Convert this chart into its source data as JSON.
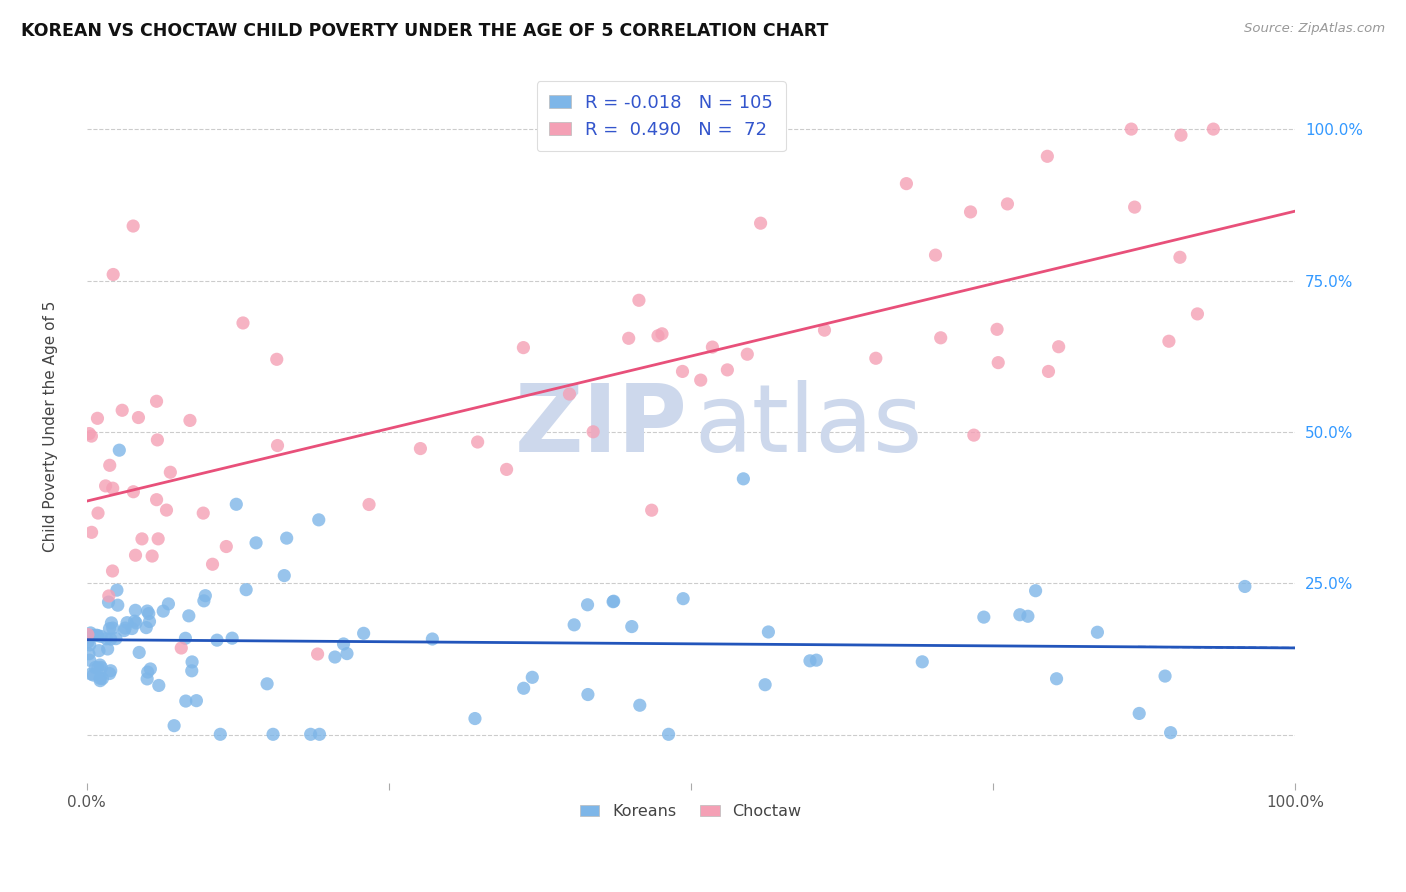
{
  "title": "KOREAN VS CHOCTAW CHILD POVERTY UNDER THE AGE OF 5 CORRELATION CHART",
  "source": "Source: ZipAtlas.com",
  "ylabel": "Child Poverty Under the Age of 5",
  "korean_R": -0.018,
  "korean_N": 105,
  "choctaw_R": 0.49,
  "choctaw_N": 72,
  "korean_color": "#7EB6E8",
  "choctaw_color": "#F4A0B5",
  "korean_line_color": "#2255BB",
  "choctaw_line_color": "#E8507A",
  "background_color": "#FFFFFF",
  "watermark_zip_color": "#CDD8EC",
  "watermark_atlas_color": "#CDD8EC",
  "xlim": [
    0.0,
    1.0
  ],
  "ylim": [
    -0.08,
    1.1
  ],
  "figsize": [
    14.06,
    8.92
  ],
  "dpi": 100,
  "seed": 42
}
